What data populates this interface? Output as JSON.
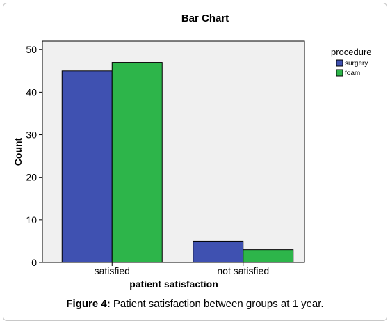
{
  "chart_data": {
    "type": "bar",
    "title": "Bar Chart",
    "xlabel": "patient satisfaction",
    "ylabel": "Count",
    "categories": [
      "satisfied",
      "not satisfied"
    ],
    "series": [
      {
        "name": "surgery",
        "values": [
          45,
          5
        ],
        "color": "#3f51b1"
      },
      {
        "name": "foam",
        "values": [
          47,
          3
        ],
        "color": "#2db54a"
      }
    ],
    "ylim": [
      0,
      52
    ],
    "yticks": [
      0,
      10,
      20,
      30,
      40,
      50
    ],
    "legend_title": "procedure",
    "legend_position": "right",
    "plot_background": "#f0f0f0",
    "grid": false
  },
  "caption": {
    "label": "Figure 4:",
    "text": "Patient satisfaction between groups at 1 year."
  }
}
